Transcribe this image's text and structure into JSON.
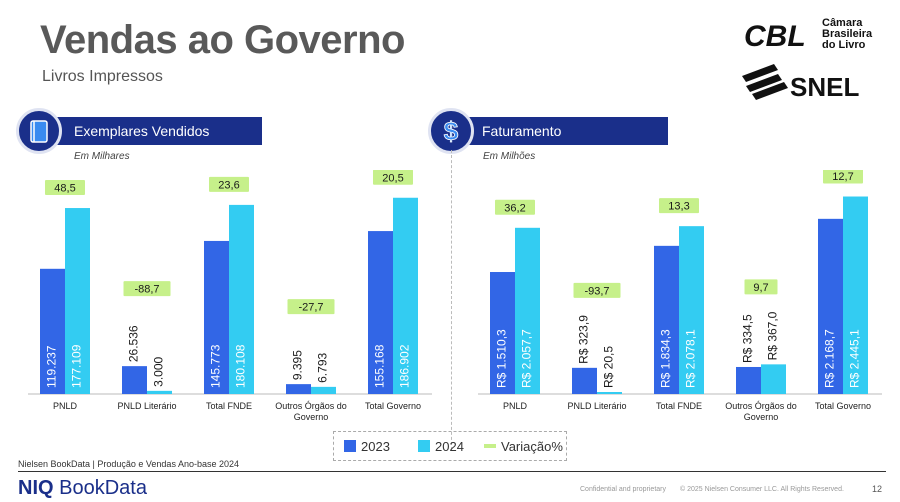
{
  "header": {
    "title": "Vendas ao Governo",
    "subtitle": "Livros Impressos"
  },
  "logos": {
    "cbl_mark": "CBL",
    "cbl_lines": [
      "Câmara",
      "Brasileira",
      "do Livro"
    ],
    "snel": "SNEL"
  },
  "left_panel": {
    "banner": "Exemplares Vendidos",
    "icon": "book-icon",
    "unit_note": "Em Milhares"
  },
  "right_panel": {
    "banner": "Faturamento",
    "icon": "dollar-icon",
    "unit_note": "Em Milhões"
  },
  "legend": {
    "items": [
      "2023",
      "2024",
      "Variação%"
    ]
  },
  "footer": {
    "source": "Nielsen BookData |  Produção e Vendas  Ano-base 2024",
    "brand_niq": "NIQ",
    "brand_name": "BookData",
    "confidential": "Confidential and proprietary",
    "copyright": "© 2025 Nielsen Consumer LLC. All Rights Reserved.",
    "page_number": "12"
  },
  "colors": {
    "series_2023": "#3266e6",
    "series_2024": "#33ccf2",
    "variation": "#c6f08a",
    "banner": "#1a2f8a",
    "title": "#595959"
  },
  "chart_data": [
    {
      "type": "bar",
      "title": "Exemplares Vendidos",
      "subtitle": "Em Milhares",
      "categories": [
        "PNLD",
        "PNLD Literário",
        "Total FNDE",
        "Outros Órgãos do Governo",
        "Total Governo"
      ],
      "series": [
        {
          "name": "2023",
          "values": [
            119237,
            26536,
            145773,
            9395,
            155168
          ],
          "labels": [
            "119.237",
            "26.536",
            "145.773",
            "9.395",
            "155.168"
          ]
        },
        {
          "name": "2024",
          "values": [
            177109,
            3000,
            180108,
            6793,
            186902
          ],
          "labels": [
            "177.109",
            "3.000",
            "180.108",
            "6.793",
            "186.902"
          ]
        }
      ],
      "variation": {
        "name": "Variação%",
        "values": [
          48.5,
          -88.7,
          23.6,
          -27.7,
          20.5
        ],
        "labels": [
          "48,5",
          "-88,7",
          "23,6",
          "-27,7",
          "20,5"
        ]
      },
      "ylim": [
        0,
        200000
      ],
      "grid": false,
      "legend": "bottom"
    },
    {
      "type": "bar",
      "title": "Faturamento",
      "subtitle": "Em Milhões",
      "categories": [
        "PNLD",
        "PNLD Literário",
        "Total FNDE",
        "Outros Órgãos do Governo",
        "Total Governo"
      ],
      "series": [
        {
          "name": "2023",
          "values": [
            1510.3,
            323.9,
            1834.3,
            334.5,
            2168.7
          ],
          "labels": [
            "R$ 1.510,3",
            "R$ 323,9",
            "R$ 1.834,3",
            "R$ 334,5",
            "R$ 2.168,7"
          ]
        },
        {
          "name": "2024",
          "values": [
            2057.7,
            20.5,
            2078.1,
            367.0,
            2445.1
          ],
          "labels": [
            "R$ 2.057,7",
            "R$ 20,5",
            "R$ 2.078,1",
            "R$ 367,0",
            "R$ 2.445,1"
          ]
        }
      ],
      "variation": {
        "name": "Variação%",
        "values": [
          36.2,
          -93.7,
          13.3,
          9.7,
          12.7
        ],
        "labels": [
          "36,2",
          "-93,7",
          "13,3",
          "9,7",
          "12,7"
        ]
      },
      "ylim": [
        0,
        2600
      ],
      "grid": false,
      "legend": "bottom"
    }
  ]
}
